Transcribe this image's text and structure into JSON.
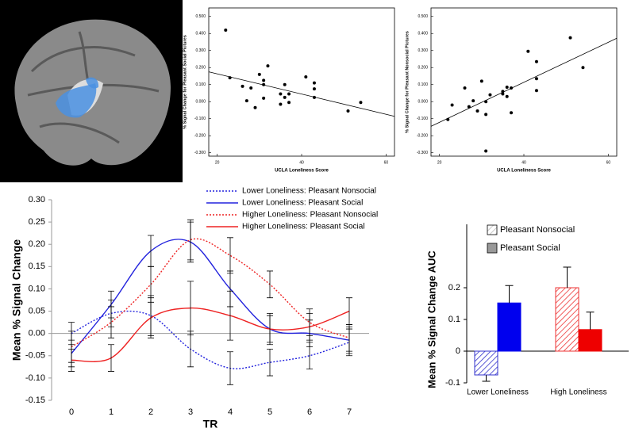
{
  "chart_data": [
    {
      "type": "scatter",
      "x_label": "UCLA Loneliness Score",
      "y_label": "% Signal Change for Pleasant Social Pictures",
      "x": [
        22,
        23,
        26,
        27,
        28,
        29,
        30,
        31,
        31,
        31,
        32,
        35,
        35,
        36,
        36,
        37,
        37,
        41,
        43,
        43,
        43,
        51,
        54
      ],
      "values": [
        0.42,
        0.14,
        0.09,
        0.005,
        0.08,
        -0.035,
        0.16,
        0.125,
        0.1,
        0.02,
        0.21,
        0.045,
        -0.015,
        0.1,
        0.025,
        0.045,
        -0.005,
        0.145,
        0.11,
        0.075,
        0.025,
        -0.055,
        -0.005
      ],
      "color": "#000000",
      "fit": {
        "x": [
          18,
          62
        ],
        "values": [
          0.175,
          -0.086
        ]
      },
      "xlim": [
        18,
        62
      ],
      "ylim": [
        -0.32,
        0.55
      ],
      "xticks": [
        20,
        40,
        60
      ],
      "yticks": [
        {
          "value": 0.5,
          "label": "0.500"
        },
        {
          "value": 0.4,
          "label": "0.400"
        },
        {
          "value": 0.3,
          "label": "0.300"
        },
        {
          "value": 0.2,
          "label": "0.200"
        },
        {
          "value": 0.1,
          "label": "0.100"
        },
        {
          "value": 0,
          "label": "0.000"
        },
        {
          "value": -0.1,
          "label": "-0.100"
        },
        {
          "value": -0.2,
          "label": "-0.200"
        },
        {
          "value": -0.3,
          "label": "-0.300"
        }
      ]
    },
    {
      "type": "scatter",
      "x_label": "UCLA Loneliness Score",
      "y_label": "% Signal Change for Pleasant Nonsocial Pictures",
      "x": [
        22,
        23,
        26,
        27,
        28,
        29,
        30,
        31,
        31,
        31,
        32,
        35,
        35,
        36,
        36,
        37,
        37,
        41,
        43,
        43,
        43,
        51,
        54
      ],
      "values": [
        -0.105,
        -0.02,
        0.08,
        -0.03,
        0.005,
        -0.055,
        0.12,
        0.0,
        -0.075,
        -0.29,
        0.04,
        0.045,
        0.06,
        0.03,
        0.085,
        0.08,
        -0.065,
        0.295,
        0.235,
        0.135,
        0.065,
        0.375,
        0.2
      ],
      "color": "#000000",
      "fit": {
        "x": [
          18,
          62
        ],
        "values": [
          -0.145,
          0.372
        ]
      },
      "xlim": [
        18,
        62
      ],
      "ylim": [
        -0.32,
        0.55
      ],
      "xticks": [
        20,
        40,
        60
      ],
      "yticks": [
        {
          "value": 0.5,
          "label": "0.500"
        },
        {
          "value": 0.4,
          "label": "0.400"
        },
        {
          "value": 0.3,
          "label": "0.300"
        },
        {
          "value": 0.2,
          "label": "0.200"
        },
        {
          "value": 0.1,
          "label": "0.100"
        },
        {
          "value": 0,
          "label": "0.000"
        },
        {
          "value": -0.1,
          "label": "-0.100"
        },
        {
          "value": -0.2,
          "label": "-0.200"
        },
        {
          "value": -0.3,
          "label": "-0.300"
        }
      ]
    },
    {
      "type": "line",
      "x_label": "TR",
      "y_label": "Mean % Signal Change",
      "x": [
        0,
        1,
        2,
        3,
        4,
        5,
        6,
        7
      ],
      "series": [
        {
          "name": "Lower Loneliness: Pleasant Nonsocial",
          "color": "#2222dd",
          "dashed": true,
          "values": [
            0.0,
            0.045,
            0.04,
            -0.035,
            -0.078,
            -0.065,
            -0.05,
            -0.02
          ],
          "errors": [
            0.025,
            0.03,
            0.045,
            0.04,
            0.037,
            0.03,
            0.03,
            0.03
          ]
        },
        {
          "name": "Lower Loneliness: Pleasant Social",
          "color": "#2222dd",
          "dashed": false,
          "values": [
            -0.045,
            0.065,
            0.185,
            0.205,
            0.1,
            0.01,
            0.0,
            -0.015
          ],
          "errors": [
            0.03,
            0.03,
            0.035,
            0.045,
            0.04,
            0.035,
            0.03,
            0.03
          ]
        },
        {
          "name": "Higher Loneliness: Pleasant Nonsocial",
          "color": "#ee2222",
          "dashed": true,
          "values": [
            -0.03,
            0.025,
            0.11,
            0.21,
            0.175,
            0.11,
            0.025,
            -0.01
          ],
          "errors": [
            0.035,
            0.035,
            0.04,
            0.045,
            0.04,
            0.03,
            0.03,
            0.03
          ]
        },
        {
          "name": "Higher Loneliness: Pleasant Social",
          "color": "#ee2222",
          "dashed": false,
          "values": [
            -0.06,
            -0.055,
            0.035,
            0.057,
            0.04,
            0.01,
            0.015,
            0.05
          ],
          "errors": [
            0.025,
            0.03,
            0.045,
            0.06,
            0.055,
            0.03,
            0.03,
            0.03
          ]
        }
      ],
      "xlim": [
        -0.5,
        7.5
      ],
      "ylim": [
        -0.15,
        0.3
      ],
      "xticks": [
        0,
        1,
        2,
        3,
        4,
        5,
        6,
        7
      ],
      "yticks": [
        {
          "value": 0.3,
          "label": "0.30"
        },
        {
          "value": 0.25,
          "label": "0.25"
        },
        {
          "value": 0.2,
          "label": "0.20"
        },
        {
          "value": 0.15,
          "label": "0.15"
        },
        {
          "value": 0.1,
          "label": "0.10"
        },
        {
          "value": 0.05,
          "label": "0.05"
        },
        {
          "value": 0,
          "label": "0.00"
        },
        {
          "value": -0.05,
          "label": "-0.05"
        },
        {
          "value": -0.1,
          "label": "-0.10"
        },
        {
          "value": -0.15,
          "label": "-0.15"
        }
      ]
    },
    {
      "type": "bar",
      "y_label": "Mean % Signal Change AUC",
      "categories": [
        "Lower Loneliness",
        "High Loneliness"
      ],
      "series": [
        {
          "name": "Pleasant Nonsocial",
          "color": "#bbbbbb",
          "hatched": true,
          "colors": [
            "#3333cc",
            "#ee3333"
          ],
          "values": [
            -0.075,
            0.2
          ],
          "errors": [
            0.02,
            0.065
          ]
        },
        {
          "name": "Pleasant Social",
          "color": "#999999",
          "hatched": false,
          "colors": [
            "#0000ee",
            "#ee0000"
          ],
          "values": [
            0.152,
            0.068
          ],
          "errors": [
            0.055,
            0.055
          ]
        }
      ],
      "ylim": [
        -0.1,
        0.4
      ],
      "yticks": [
        0.2,
        0.1,
        0,
        -0.1
      ]
    }
  ]
}
